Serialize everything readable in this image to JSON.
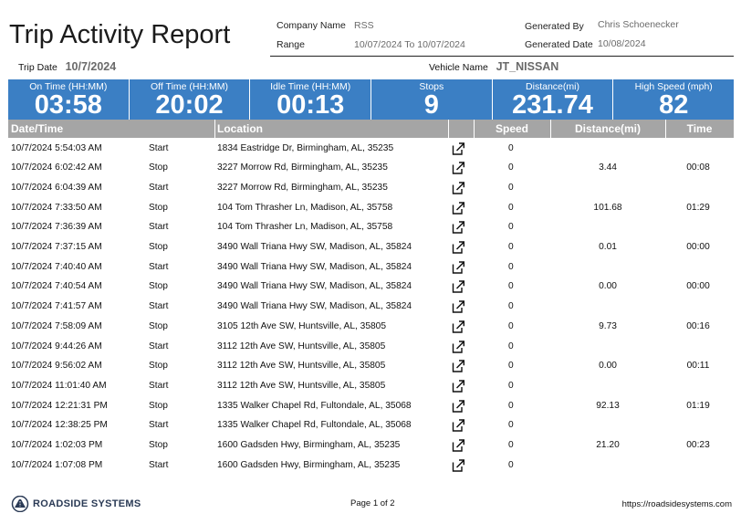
{
  "report": {
    "title": "Trip Activity Report",
    "company_label": "Company Name",
    "company_value": "RSS",
    "range_label": "Range",
    "range_value": "10/07/2024 To 10/07/2024",
    "generated_by_label": "Generated By",
    "generated_by_value": "Chris Schoenecker",
    "generated_date_label": "Generated Date",
    "generated_date_value": "10/08/2024",
    "trip_date_label": "Trip Date",
    "trip_date_value": "10/7/2024",
    "vehicle_label": "Vehicle Name",
    "vehicle_value": "JT_NISSAN"
  },
  "kpis": [
    {
      "label": "On Time (HH:MM)",
      "value": "03:58"
    },
    {
      "label": "Off Time (HH:MM)",
      "value": "20:02"
    },
    {
      "label": "Idle Time (HH:MM)",
      "value": "00:13"
    },
    {
      "label": "Stops",
      "value": "9"
    },
    {
      "label": "Distance(mi)",
      "value": "231.74"
    },
    {
      "label": "High Speed (mph)",
      "value": "82"
    }
  ],
  "table": {
    "headers": {
      "datetime": "Date/Time",
      "location": "Location",
      "speed": "Speed",
      "distance": "Distance(mi)",
      "time": "Time"
    },
    "rows": [
      {
        "datetime": "10/7/2024 5:54:03 AM",
        "event": "Start",
        "location": "1834 Eastridge Dr, Birmingham, AL, 35235",
        "speed": "0",
        "distance": "",
        "time": ""
      },
      {
        "datetime": "10/7/2024 6:02:42 AM",
        "event": "Stop",
        "location": "3227 Morrow Rd, Birmingham, AL, 35235",
        "speed": "0",
        "distance": "3.44",
        "time": "00:08"
      },
      {
        "datetime": "10/7/2024 6:04:39 AM",
        "event": "Start",
        "location": "3227 Morrow Rd, Birmingham, AL, 35235",
        "speed": "0",
        "distance": "",
        "time": ""
      },
      {
        "datetime": "10/7/2024 7:33:50 AM",
        "event": "Stop",
        "location": "104 Tom Thrasher Ln, Madison, AL, 35758",
        "speed": "0",
        "distance": "101.68",
        "time": "01:29"
      },
      {
        "datetime": "10/7/2024 7:36:39 AM",
        "event": "Start",
        "location": "104 Tom Thrasher Ln, Madison, AL, 35758",
        "speed": "0",
        "distance": "",
        "time": ""
      },
      {
        "datetime": "10/7/2024 7:37:15 AM",
        "event": "Stop",
        "location": "3490 Wall Triana Hwy SW, Madison, AL, 35824",
        "speed": "0",
        "distance": "0.01",
        "time": "00:00"
      },
      {
        "datetime": "10/7/2024 7:40:40 AM",
        "event": "Start",
        "location": "3490 Wall Triana Hwy SW, Madison, AL, 35824",
        "speed": "0",
        "distance": "",
        "time": ""
      },
      {
        "datetime": "10/7/2024 7:40:54 AM",
        "event": "Stop",
        "location": "3490 Wall Triana Hwy SW, Madison, AL, 35824",
        "speed": "0",
        "distance": "0.00",
        "time": "00:00"
      },
      {
        "datetime": "10/7/2024 7:41:57 AM",
        "event": "Start",
        "location": "3490 Wall Triana Hwy SW, Madison, AL, 35824",
        "speed": "0",
        "distance": "",
        "time": ""
      },
      {
        "datetime": "10/7/2024 7:58:09 AM",
        "event": "Stop",
        "location": "3105 12th Ave SW, Huntsville, AL, 35805",
        "speed": "0",
        "distance": "9.73",
        "time": "00:16"
      },
      {
        "datetime": "10/7/2024 9:44:26 AM",
        "event": "Start",
        "location": "3112 12th Ave SW, Huntsville, AL, 35805",
        "speed": "0",
        "distance": "",
        "time": ""
      },
      {
        "datetime": "10/7/2024 9:56:02 AM",
        "event": "Stop",
        "location": "3112 12th Ave SW, Huntsville, AL, 35805",
        "speed": "0",
        "distance": "0.00",
        "time": "00:11"
      },
      {
        "datetime": "10/7/2024 11:01:40 AM",
        "event": "Start",
        "location": "3112 12th Ave SW, Huntsville, AL, 35805",
        "speed": "0",
        "distance": "",
        "time": ""
      },
      {
        "datetime": "10/7/2024 12:21:31 PM",
        "event": "Stop",
        "location": "1335 Walker Chapel Rd, Fultondale, AL, 35068",
        "speed": "0",
        "distance": "92.13",
        "time": "01:19"
      },
      {
        "datetime": "10/7/2024 12:38:25 PM",
        "event": "Start",
        "location": "1335 Walker Chapel Rd, Fultondale, AL, 35068",
        "speed": "0",
        "distance": "",
        "time": ""
      },
      {
        "datetime": "10/7/2024 1:02:03 PM",
        "event": "Stop",
        "location": "1600 Gadsden Hwy, Birmingham, AL, 35235",
        "speed": "0",
        "distance": "21.20",
        "time": "00:23"
      },
      {
        "datetime": "10/7/2024 1:07:08 PM",
        "event": "Start",
        "location": "1600 Gadsden Hwy, Birmingham, AL, 35235",
        "speed": "0",
        "distance": "",
        "time": ""
      }
    ]
  },
  "footer": {
    "logo_text": "ROADSIDE SYSTEMS",
    "page": "Page 1 of 2",
    "url": "https://roadsidesystems.com"
  },
  "icons": {
    "row_link": "external-link-icon",
    "logo": "roadside-logo-icon"
  },
  "colors": {
    "kpi_bg": "#3b7fc4",
    "table_header_bg": "#a5a5a5"
  }
}
